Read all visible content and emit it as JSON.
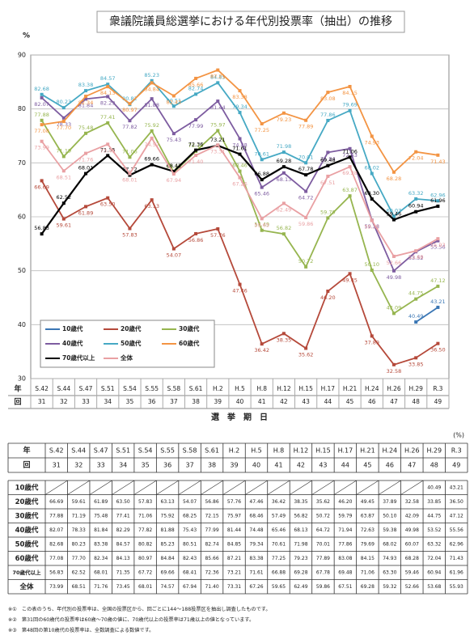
{
  "chart_data": {
    "type": "line",
    "title": "衆議院議員総選挙における年代別投票率（抽出）の推移",
    "ylabel": "%",
    "xlabel": "選　挙　期　日",
    "row_labels": [
      "年",
      "回"
    ],
    "categories": [
      "S.42",
      "S.44",
      "S.47",
      "S.51",
      "S.54",
      "S.55",
      "S.58",
      "S.61",
      "H.2",
      "H.5",
      "H.8",
      "H.12",
      "H.15",
      "H.17",
      "H.21",
      "H.24",
      "H.26",
      "H.29",
      "R.3"
    ],
    "terms": [
      31,
      32,
      33,
      34,
      35,
      36,
      37,
      38,
      39,
      40,
      41,
      42,
      43,
      44,
      45,
      46,
      47,
      48,
      49
    ],
    "ylim": [
      30,
      90
    ],
    "yticks": [
      30,
      40,
      50,
      60,
      70,
      80,
      90
    ],
    "grid": true,
    "series": [
      {
        "name": "10歳代",
        "color": "#3a76b4",
        "values": [
          null,
          null,
          null,
          null,
          null,
          null,
          null,
          null,
          null,
          null,
          null,
          null,
          null,
          null,
          null,
          null,
          null,
          40.49,
          43.21
        ],
        "value_labels": [
          null,
          null,
          null,
          null,
          null,
          null,
          null,
          null,
          null,
          null,
          null,
          null,
          null,
          null,
          null,
          null,
          null,
          "40.49",
          "43.21"
        ]
      },
      {
        "name": "20歳代",
        "color": "#b5493a",
        "values": [
          66.69,
          59.61,
          61.89,
          63.5,
          57.83,
          63.13,
          54.07,
          56.86,
          57.76,
          47.46,
          36.42,
          38.35,
          35.62,
          46.2,
          49.45,
          37.89,
          32.58,
          33.85,
          36.5
        ],
        "value_labels": [
          "66.69",
          "59.61",
          "61.89",
          "63.50",
          "57.83",
          "63.13",
          "54.07",
          "56.86",
          "57.76",
          "47.46",
          "36.42",
          "38.35",
          "35.62",
          "46.20",
          "49.45",
          "37.89",
          "32.58",
          "33.85",
          "36.50"
        ]
      },
      {
        "name": "30歳代",
        "color": "#96b54f",
        "values": [
          77.88,
          71.19,
          75.48,
          77.41,
          71.06,
          75.92,
          68.25,
          72.15,
          75.97,
          68.46,
          57.49,
          56.82,
          50.72,
          59.79,
          63.87,
          50.1,
          42.09,
          44.75,
          47.12
        ],
        "value_labels": [
          "77.88",
          "71.19",
          "75.48",
          "77.41",
          "71.06",
          "75.92",
          "68.25",
          "72.15",
          "75.97",
          "68.46",
          "57.49",
          "56.82",
          "50.72",
          "59.79",
          "63.87",
          "50.10",
          "42.09",
          "44.75",
          "47.12"
        ]
      },
      {
        "name": "40歳代",
        "color": "#7d5ca0",
        "values": [
          82.07,
          78.33,
          81.84,
          82.29,
          77.82,
          81.88,
          75.43,
          77.99,
          81.44,
          74.48,
          65.46,
          68.13,
          64.72,
          71.94,
          72.63,
          59.38,
          49.98,
          53.52,
          55.56
        ],
        "value_labels": [
          "82.07",
          "78.33",
          "81.84",
          "82.29",
          "77.82",
          "81.88",
          "75.43",
          "77.99",
          "81.44",
          "74.48",
          "65.46",
          "68.13",
          "64.72",
          "71.94",
          "72.63",
          "59.38",
          "49.98",
          "53.52",
          "55.56"
        ]
      },
      {
        "name": "50歳代",
        "color": "#46a9c4",
        "values": [
          82.68,
          80.23,
          83.38,
          84.57,
          80.82,
          85.23,
          80.51,
          82.74,
          84.85,
          79.34,
          70.61,
          71.98,
          70.01,
          77.86,
          79.69,
          68.02,
          60.07,
          63.32,
          62.96
        ],
        "value_labels": [
          "82.68",
          "80.23",
          "83.38",
          "84.57",
          "80.82",
          "85.23",
          "80.51",
          "82.74",
          "84.85",
          "79.34",
          "70.61",
          "71.98",
          "70.01",
          "77.86",
          "79.69",
          "68.02",
          "60.07",
          "63.32",
          "62.96"
        ]
      },
      {
        "name": "60歳代",
        "color": "#f39443",
        "values": [
          77.08,
          77.7,
          82.34,
          84.13,
          80.97,
          84.84,
          82.43,
          85.66,
          87.21,
          83.38,
          77.25,
          79.23,
          77.89,
          83.08,
          84.15,
          74.93,
          68.28,
          72.04,
          71.43
        ],
        "value_labels": [
          "77.08",
          "77.70",
          "82.34",
          "84.13",
          "80.97",
          "84.84",
          "82.43",
          "85.66",
          "87.21",
          "83.38",
          "77.25",
          "79.23",
          "77.89",
          "83.08",
          "84.15",
          "74.93",
          "68.28",
          "72.04",
          "71.43"
        ]
      },
      {
        "name": "70歳代以上",
        "color": "#000000",
        "values": [
          56.83,
          62.52,
          68.01,
          71.35,
          67.72,
          69.66,
          68.41,
          72.36,
          73.21,
          71.61,
          66.88,
          69.28,
          67.78,
          69.48,
          71.06,
          63.3,
          59.46,
          60.94,
          61.96
        ],
        "value_labels": [
          "56.83",
          "62.52",
          "68.01",
          "71.35",
          "67.72",
          "69.66",
          "68.41",
          "72.36",
          "73.21",
          "71.61",
          "66.88",
          "69.28",
          "67.78",
          "69.48",
          "71.06",
          "63.30",
          "59.46",
          "60.94",
          "61.96"
        ]
      },
      {
        "name": "全体",
        "color": "#e9a0a3",
        "values": [
          73.99,
          68.51,
          71.76,
          73.45,
          68.01,
          74.57,
          67.94,
          71.4,
          73.31,
          67.26,
          59.65,
          62.49,
          59.86,
          67.51,
          69.28,
          59.32,
          52.66,
          53.68,
          55.93
        ],
        "value_labels": [
          "73.99",
          "68.51",
          "71.76",
          "73.45",
          "68.01",
          "74.57",
          "67.94",
          "71.40",
          "73.31",
          "67.26",
          "59.65",
          "62.49",
          "59.86",
          "67.51",
          "69.28",
          "59.32",
          "52.66",
          "53.68",
          "55.93"
        ]
      }
    ]
  },
  "table": {
    "unit": "(%)"
  },
  "notes": [
    "※①　この表のうち、年代別の投票率は、全国の投票区から、回ごとに144～188投票区を抽出し調査したものです。",
    "※②　第31回の60歳代の投票率は60歳～70歳の値に、70歳代以上の投票率は71歳以上の値となっています。",
    "※③　第48回の第10歳代の投票率は、全数調査による数値です。"
  ]
}
